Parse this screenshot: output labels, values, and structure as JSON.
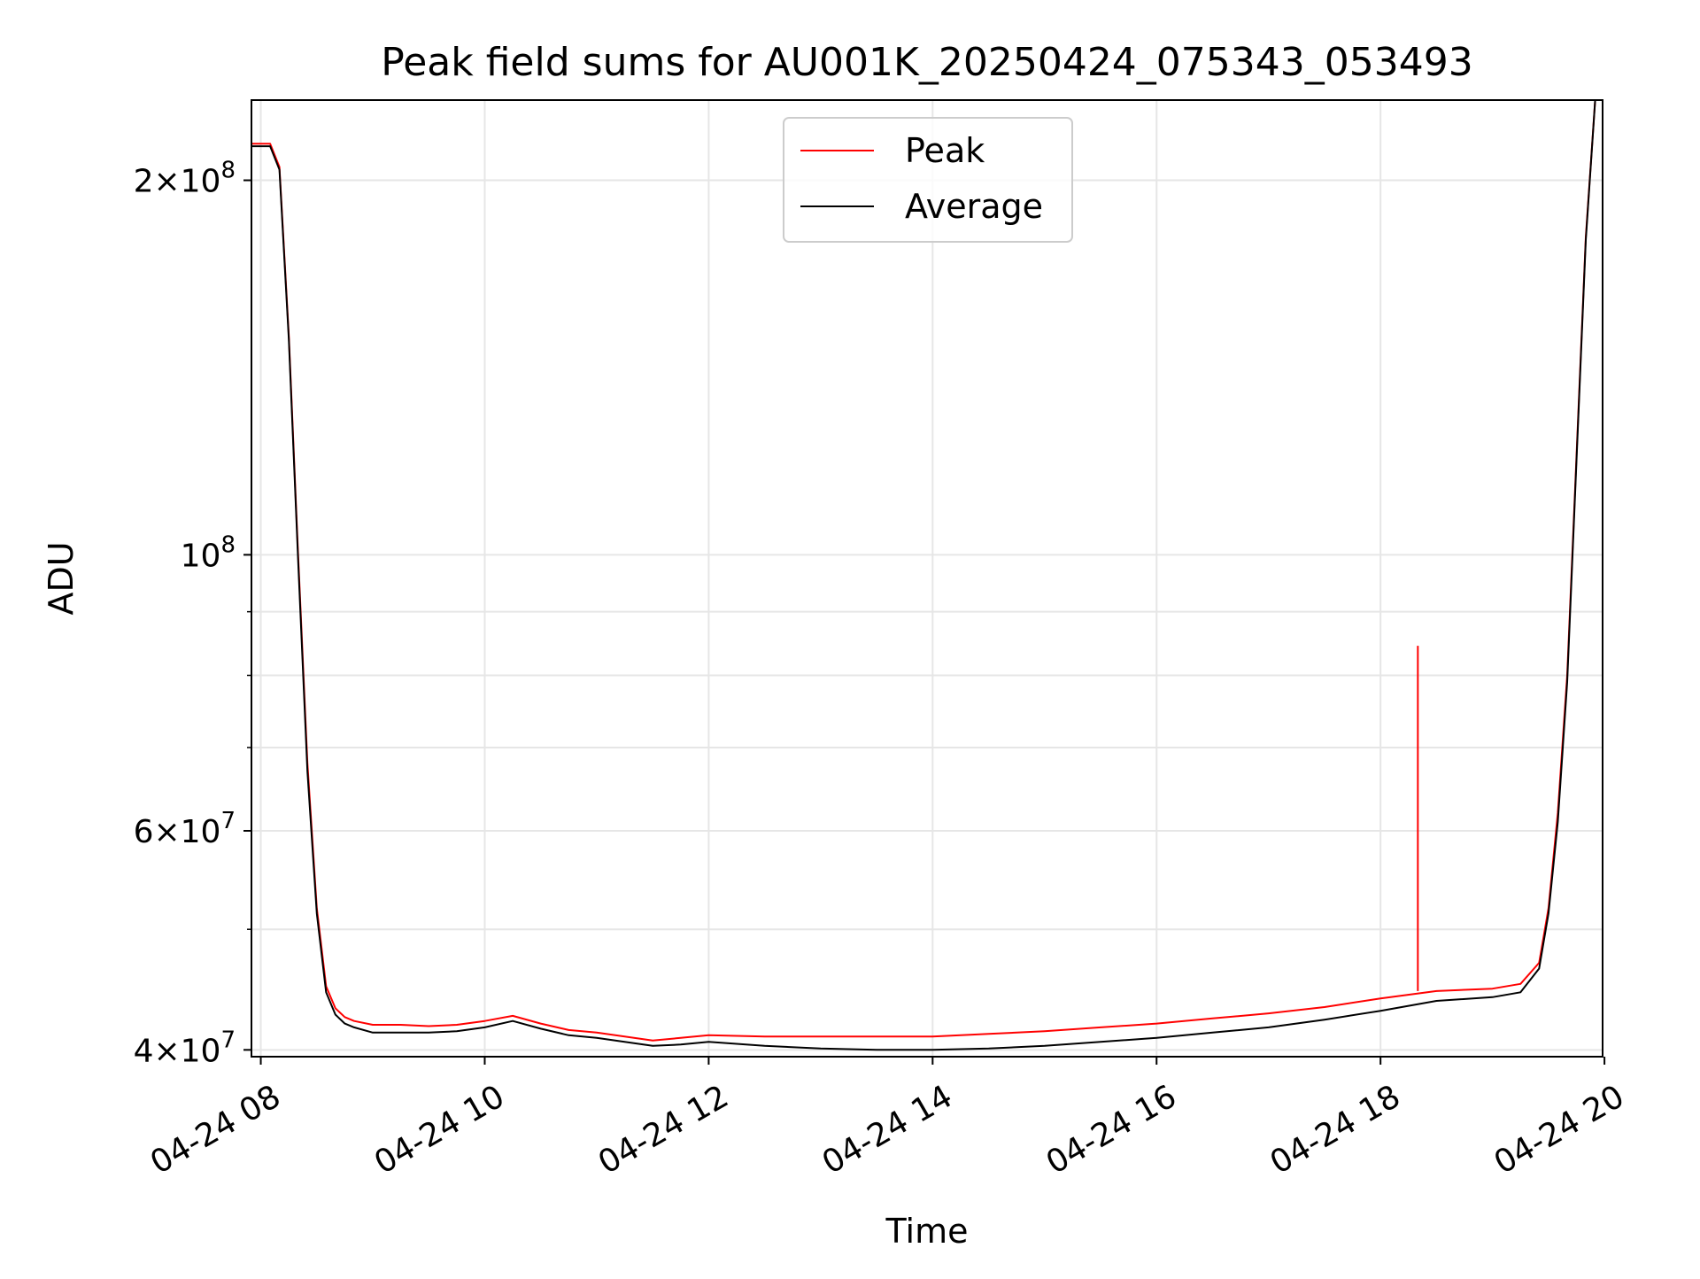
{
  "colors": {
    "peak": "#ff0000",
    "average": "#000000",
    "grid": "#e6e6e6",
    "axes": "#000000",
    "legend_border": "#cccccc"
  },
  "chart_data": {
    "type": "line",
    "title": "Peak field sums for AU001K_20250424_075343_053493",
    "xlabel": "Time",
    "ylabel": "ADU",
    "y_scale": "log",
    "ylim": [
      39500000,
      232000000
    ],
    "xlim": [
      "04-24 07:55",
      "04-24 19:59"
    ],
    "grid": true,
    "legend": {
      "placement": "top-center",
      "entries": [
        "Peak",
        "Average"
      ]
    },
    "x_ticks": [
      {
        "value": "04-24 08:00",
        "label": "04-24 08"
      },
      {
        "value": "04-24 10:00",
        "label": "04-24 10"
      },
      {
        "value": "04-24 12:00",
        "label": "04-24 12"
      },
      {
        "value": "04-24 14:00",
        "label": "04-24 14"
      },
      {
        "value": "04-24 16:00",
        "label": "04-24 16"
      },
      {
        "value": "04-24 18:00",
        "label": "04-24 18"
      },
      {
        "value": "04-24 20:00",
        "label": "04-24 20"
      }
    ],
    "y_major_ticks": [
      {
        "value": 40000000,
        "mantissa": "4",
        "exponent": "7"
      },
      {
        "value": 60000000,
        "mantissa": "6",
        "exponent": "7"
      },
      {
        "value": 100000000,
        "mantissa": "",
        "exponent": "8"
      },
      {
        "value": 200000000,
        "mantissa": "2",
        "exponent": "8"
      }
    ],
    "y_minor_ticks": [
      50000000,
      70000000,
      80000000,
      90000000
    ],
    "series": [
      {
        "name": "Peak",
        "spike": {
          "x": "04-24 18:20",
          "y": 84500000
        },
        "x": [
          "04-24 07:55",
          "04-24 08:05",
          "04-24 08:10",
          "04-24 08:15",
          "04-24 08:20",
          "04-24 08:25",
          "04-24 08:30",
          "04-24 08:35",
          "04-24 08:40",
          "04-24 08:45",
          "04-24 08:50",
          "04-24 09:00",
          "04-24 09:15",
          "04-24 09:30",
          "04-24 09:45",
          "04-24 10:00",
          "04-24 10:15",
          "04-24 10:30",
          "04-24 10:45",
          "04-24 11:00",
          "04-24 11:15",
          "04-24 11:30",
          "04-24 11:45",
          "04-24 12:00",
          "04-24 12:30",
          "04-24 13:00",
          "04-24 13:30",
          "04-24 14:00",
          "04-24 14:30",
          "04-24 15:00",
          "04-24 15:30",
          "04-24 16:00",
          "04-24 16:30",
          "04-24 17:00",
          "04-24 17:30",
          "04-24 18:00",
          "04-24 18:30",
          "04-24 19:00",
          "04-24 19:15",
          "04-24 19:25",
          "04-24 19:30",
          "04-24 19:35",
          "04-24 19:40",
          "04-24 19:45",
          "04-24 19:50",
          "04-24 19:55",
          "04-24 19:59"
        ],
        "y": [
          214000000,
          214000000,
          205000000,
          150000000,
          100000000,
          68000000,
          52000000,
          45000000,
          43200000,
          42500000,
          42200000,
          41900000,
          41900000,
          41800000,
          41900000,
          42200000,
          42600000,
          42000000,
          41500000,
          41300000,
          41000000,
          40700000,
          40900000,
          41100000,
          41000000,
          41000000,
          41000000,
          41000000,
          41200000,
          41400000,
          41700000,
          42000000,
          42400000,
          42800000,
          43300000,
          44000000,
          44600000,
          44800000,
          45200000,
          47000000,
          52000000,
          62000000,
          80000000,
          120000000,
          180000000,
          232000000,
          232000000
        ]
      },
      {
        "name": "Average",
        "x": [
          "04-24 07:55",
          "04-24 08:05",
          "04-24 08:10",
          "04-24 08:15",
          "04-24 08:20",
          "04-24 08:25",
          "04-24 08:30",
          "04-24 08:35",
          "04-24 08:40",
          "04-24 08:45",
          "04-24 08:50",
          "04-24 09:00",
          "04-24 09:15",
          "04-24 09:30",
          "04-24 09:45",
          "04-24 10:00",
          "04-24 10:15",
          "04-24 10:30",
          "04-24 10:45",
          "04-24 11:00",
          "04-24 11:15",
          "04-24 11:30",
          "04-24 11:45",
          "04-24 12:00",
          "04-24 12:30",
          "04-24 13:00",
          "04-24 13:30",
          "04-24 14:00",
          "04-24 14:30",
          "04-24 15:00",
          "04-24 15:30",
          "04-24 16:00",
          "04-24 16:30",
          "04-24 17:00",
          "04-24 17:30",
          "04-24 18:00",
          "04-24 18:30",
          "04-24 19:00",
          "04-24 19:15",
          "04-24 19:25",
          "04-24 19:30",
          "04-24 19:35",
          "04-24 19:40",
          "04-24 19:45",
          "04-24 19:50",
          "04-24 19:55",
          "04-24 19:59"
        ],
        "y": [
          213000000,
          213000000,
          204000000,
          149000000,
          99000000,
          67000000,
          51500000,
          44500000,
          42700000,
          42000000,
          41700000,
          41300000,
          41300000,
          41300000,
          41400000,
          41700000,
          42200000,
          41600000,
          41100000,
          40900000,
          40600000,
          40300000,
          40400000,
          40600000,
          40300000,
          40100000,
          40000000,
          40000000,
          40100000,
          40300000,
          40600000,
          40900000,
          41300000,
          41700000,
          42300000,
          43000000,
          43800000,
          44100000,
          44500000,
          46500000,
          51500000,
          61000000,
          79000000,
          119000000,
          179000000,
          232000000,
          232000000
        ]
      }
    ]
  }
}
